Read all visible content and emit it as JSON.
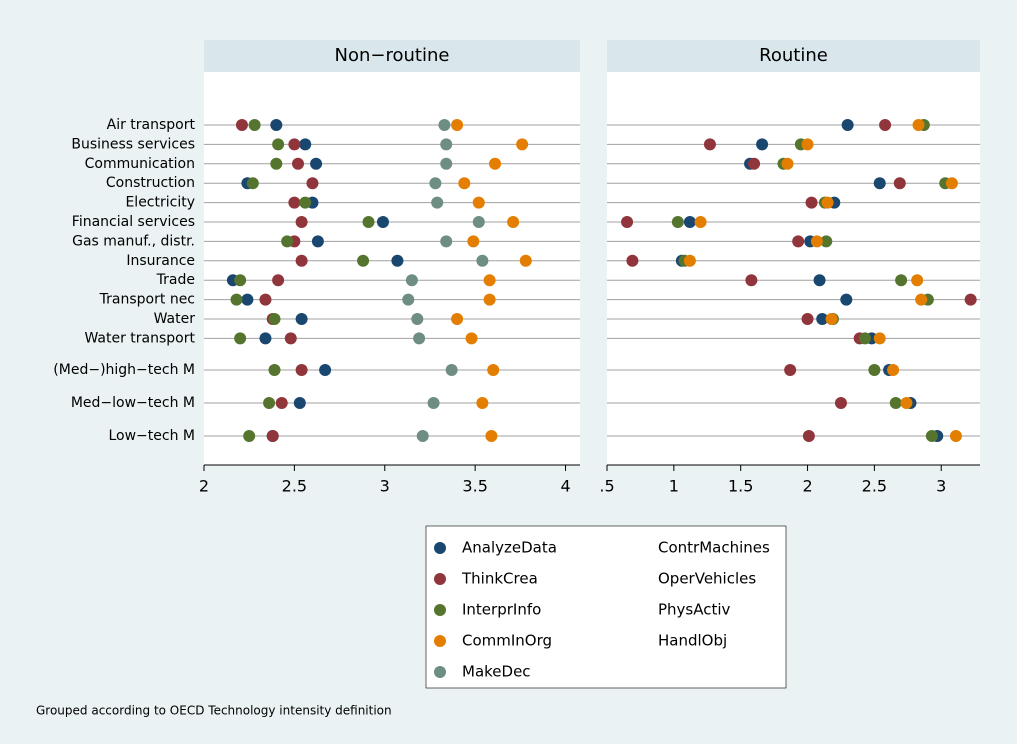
{
  "chart_data": [
    {
      "type": "dot",
      "title": "Non−routine",
      "categories": [
        "Air transport",
        "Business services",
        "Communication",
        "Construction",
        "Electricity",
        "Financial services",
        "Gas manuf., distr.",
        "Insurance",
        "Trade",
        "Transport nec",
        "Water",
        "Water transport",
        "(Med−)high−tech M",
        "Med−low−tech M",
        "Low−tech M"
      ],
      "xlim": [
        2,
        4.08
      ],
      "xticks": [
        2,
        2.5,
        3,
        3.5,
        4
      ],
      "series": [
        {
          "name": "AnalyzeData",
          "color": "#1a476f",
          "values": [
            2.4,
            2.56,
            2.62,
            2.24,
            2.6,
            2.99,
            2.63,
            3.07,
            2.16,
            2.24,
            2.54,
            2.34,
            2.67,
            2.53,
            2.38
          ]
        },
        {
          "name": "ThinkCrea",
          "color": "#90353b",
          "values": [
            2.21,
            2.5,
            2.52,
            2.6,
            2.5,
            2.54,
            2.5,
            2.54,
            2.41,
            2.34,
            2.38,
            2.48,
            2.54,
            2.43,
            2.38
          ]
        },
        {
          "name": "InterprInfo",
          "color": "#55752f",
          "values": [
            2.28,
            2.41,
            2.4,
            2.27,
            2.56,
            2.91,
            2.46,
            2.88,
            2.2,
            2.18,
            2.39,
            2.2,
            2.39,
            2.36,
            2.25
          ]
        },
        {
          "name": "CommInOrg",
          "color": "#e37e00",
          "values": [
            3.4,
            3.76,
            3.61,
            3.44,
            3.52,
            3.71,
            3.49,
            3.78,
            3.58,
            3.58,
            3.4,
            3.48,
            3.6,
            3.54,
            3.59
          ]
        },
        {
          "name": "MakeDec",
          "color": "#6e8e84",
          "values": [
            3.33,
            3.34,
            3.34,
            3.28,
            3.29,
            3.52,
            3.34,
            3.54,
            3.15,
            3.13,
            3.18,
            3.19,
            3.37,
            3.27,
            3.21
          ]
        }
      ]
    },
    {
      "type": "dot",
      "title": "Routine",
      "xlim": [
        0.5,
        3.29
      ],
      "xticks": [
        {
          "value": 0.5,
          "label": ".5"
        },
        1,
        1.5,
        2,
        2.5,
        3
      ],
      "series": [
        {
          "name": "ContrMachines",
          "color": "#1a476f",
          "values": [
            2.3,
            1.66,
            1.57,
            2.54,
            2.2,
            1.12,
            2.02,
            1.06,
            2.09,
            2.29,
            2.11,
            2.48,
            2.61,
            2.77,
            2.97
          ]
        },
        {
          "name": "OperVehicles",
          "color": "#90353b",
          "values": [
            2.58,
            1.27,
            1.6,
            2.69,
            2.03,
            0.65,
            1.93,
            0.69,
            1.58,
            3.22,
            2.0,
            2.39,
            1.87,
            2.25,
            2.01
          ]
        },
        {
          "name": "PhysActiv",
          "color": "#55752f",
          "values": [
            2.87,
            1.95,
            1.82,
            3.03,
            2.13,
            1.03,
            2.14,
            1.08,
            2.7,
            2.9,
            2.19,
            2.43,
            2.5,
            2.66,
            2.93
          ]
        },
        {
          "name": "HandlObj",
          "color": "#e37e00",
          "values": [
            2.83,
            2.0,
            1.85,
            3.08,
            2.15,
            1.2,
            2.07,
            1.12,
            2.82,
            2.85,
            2.18,
            2.54,
            2.64,
            2.74,
            3.11
          ]
        }
      ]
    }
  ],
  "note": "Grouped according to OECD Technology intensity definition"
}
